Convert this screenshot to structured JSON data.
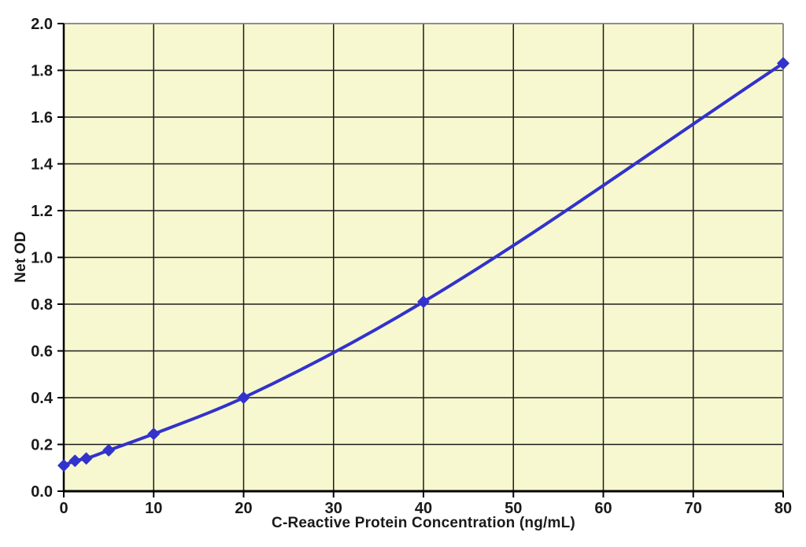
{
  "chart_data": {
    "type": "line",
    "title": "",
    "xlabel": "C-Reactive Protein Concentration (ng/mL)",
    "ylabel": "Net OD",
    "x": [
      0,
      1.25,
      2.5,
      5,
      10,
      20,
      40,
      80
    ],
    "y": [
      0.11,
      0.13,
      0.14,
      0.175,
      0.245,
      0.4,
      0.81,
      1.83
    ],
    "xlim": [
      0,
      80
    ],
    "ylim": [
      0,
      2.0
    ],
    "x_ticks": [
      0,
      10,
      20,
      30,
      40,
      50,
      60,
      70,
      80
    ],
    "y_ticks": [
      "0.0",
      "0.2",
      "0.4",
      "0.6",
      "0.8",
      "1.0",
      "1.2",
      "1.4",
      "1.6",
      "1.8",
      "2.0"
    ],
    "grid": true,
    "legend": "none",
    "marker": "diamond",
    "colors": {
      "line": "#3232CC",
      "marker": "#3232CC",
      "plot_background": "#F8F8D0",
      "gridline": "#1C1C1C",
      "axis": "#000000",
      "frame_top_right": "#8F8F8F",
      "tick_text": "#1A1A1A",
      "page_background": "#FFFFFF"
    }
  }
}
